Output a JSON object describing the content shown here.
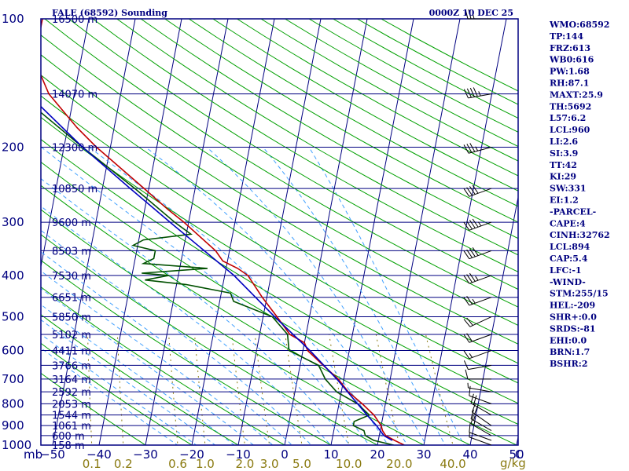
{
  "header": {
    "station": "FALE (68592) Sounding",
    "time": "0000Z 10 DEC 25"
  },
  "units": {
    "pressure": "mb",
    "mixing_ratio": "g/kg",
    "temperature": "C"
  },
  "indices": [
    "WMO:68592",
    "TP:144",
    "FRZ:613",
    "WB0:616",
    "PW:1.68",
    "RH:87.1",
    "MAXT:25.9",
    "TH:5692",
    "L57:6.2",
    "LCL:960",
    "LI:2.6",
    "SI:3.9",
    "TT:42",
    "KI:29",
    "SW:331",
    "EI:1.2",
    "-PARCEL-",
    "CAPE:4",
    "CINH:32762",
    "LCL:894",
    "CAP:5.4",
    "LFC:-1",
    "-WIND-",
    "STM:255/15",
    "HEL:-209",
    "SHR+:0.0",
    "SRDS:-81",
    "EHI:0.0",
    "BRN:1.7",
    "BSHR:2"
  ],
  "colors": {
    "frame": "#000080",
    "temperature": "#c00000",
    "dewpoint": "#005000",
    "parcel": "#0000c0",
    "dry_adiabat": "#00a000",
    "moist_adiabat": "#40a0ff",
    "mixing_ratio": "#8a7a10",
    "wind": "#000000"
  },
  "chart_data": {
    "type": "line",
    "title": "FALE (68592) Sounding",
    "xlabel": "C",
    "ylabel": "mb",
    "xlim": [
      -50,
      50
    ],
    "ylim": [
      1000,
      100
    ],
    "y_scale": "log",
    "pressure_ticks": [
      1000,
      900,
      800,
      700,
      600,
      500,
      400,
      300,
      200,
      100
    ],
    "temperature_ticks": [
      -50,
      -40,
      -30,
      -20,
      -10,
      0,
      10,
      20,
      30,
      40,
      50
    ],
    "mixing_ratio_ticks": [
      "0.1",
      "0.2",
      "0.6",
      "1.0",
      "2.0",
      "3.0",
      "5.0",
      "10.0",
      "20.0",
      "40.0"
    ],
    "mixing_ratio_values": [
      0.1,
      0.2,
      0.6,
      1.0,
      2.0,
      3.0,
      5.0,
      10.0,
      20.0,
      40.0
    ],
    "height_levels": [
      {
        "p": 1000,
        "label": "158 m"
      },
      {
        "p": 950,
        "label": "600 m"
      },
      {
        "p": 900,
        "label": "1061 m"
      },
      {
        "p": 850,
        "label": "1544 m"
      },
      {
        "p": 800,
        "label": "2053 m"
      },
      {
        "p": 750,
        "label": "2592 m"
      },
      {
        "p": 700,
        "label": "3164 m"
      },
      {
        "p": 650,
        "label": "3766 m"
      },
      {
        "p": 600,
        "label": "4411 m"
      },
      {
        "p": 550,
        "label": "5102 m"
      },
      {
        "p": 500,
        "label": "5850 m"
      },
      {
        "p": 450,
        "label": "6651 m"
      },
      {
        "p": 400,
        "label": "7530 m"
      },
      {
        "p": 350,
        "label": "8503 m"
      },
      {
        "p": 300,
        "label": "9600 m"
      },
      {
        "p": 250,
        "label": "10850 m"
      },
      {
        "p": 200,
        "label": "12300 m"
      },
      {
        "p": 150,
        "label": "14070 m"
      },
      {
        "p": 100,
        "label": "16500 m"
      }
    ],
    "series": [
      {
        "name": "Temperature",
        "points": [
          [
            1000,
            25.8
          ],
          [
            975,
            23.5
          ],
          [
            950,
            21.4
          ],
          [
            925,
            20.5
          ],
          [
            900,
            20.0
          ],
          [
            850,
            18.0
          ],
          [
            800,
            15.0
          ],
          [
            750,
            11.5
          ],
          [
            700,
            8.8
          ],
          [
            650,
            5.0
          ],
          [
            600,
            1.0
          ],
          [
            575,
            0.0
          ],
          [
            550,
            -3.5
          ],
          [
            500,
            -7.0
          ],
          [
            450,
            -11.0
          ],
          [
            400,
            -15.0
          ],
          [
            385,
            -17.5
          ],
          [
            370,
            -21.0
          ],
          [
            350,
            -23.0
          ],
          [
            300,
            -31.0
          ],
          [
            280,
            -35.0
          ],
          [
            250,
            -41.0
          ],
          [
            200,
            -53.0
          ],
          [
            180,
            -58.0
          ],
          [
            150,
            -65.5
          ],
          [
            125,
            -70.0
          ],
          [
            115,
            -71.5
          ],
          [
            105,
            -70.0
          ],
          [
            100,
            -70.0
          ]
        ]
      },
      {
        "name": "Dewpoint",
        "points": [
          [
            1000,
            23.5
          ],
          [
            975,
            19.0
          ],
          [
            950,
            17.0
          ],
          [
            925,
            16.5
          ],
          [
            900,
            14.0
          ],
          [
            880,
            14.0
          ],
          [
            850,
            17.0
          ],
          [
            800,
            14.0
          ],
          [
            750,
            9.0
          ],
          [
            700,
            6.0
          ],
          [
            650,
            4.0
          ],
          [
            600,
            -3.0
          ],
          [
            550,
            -4.0
          ],
          [
            500,
            -8.0
          ],
          [
            460,
            -17.0
          ],
          [
            440,
            -18.0
          ],
          [
            420,
            -28.0
          ],
          [
            410,
            -37.0
          ],
          [
            400,
            -32.0
          ],
          [
            395,
            -38.0
          ],
          [
            385,
            -24.0
          ],
          [
            375,
            -38.0
          ],
          [
            365,
            -36.0
          ],
          [
            350,
            -36.0
          ],
          [
            340,
            -41.0
          ],
          [
            330,
            -39.0
          ],
          [
            320,
            -29.0
          ],
          [
            300,
            -33.0
          ],
          [
            250,
            -43.0
          ],
          [
            200,
            -56.0
          ],
          [
            150,
            -72.0
          ],
          [
            125,
            -76.0
          ],
          [
            112,
            -77.0
          ],
          [
            105,
            -78.0
          ],
          [
            100,
            -77.5
          ]
        ]
      },
      {
        "name": "Parcel",
        "points": [
          [
            975,
            23.0
          ],
          [
            950,
            21.0
          ],
          [
            900,
            19.0
          ],
          [
            850,
            16.5
          ],
          [
            800,
            14.0
          ],
          [
            700,
            8.5
          ],
          [
            600,
            1.5
          ],
          [
            500,
            -7.5
          ],
          [
            400,
            -18.0
          ],
          [
            300,
            -34.0
          ],
          [
            250,
            -44.0
          ],
          [
            200,
            -56.0
          ],
          [
            150,
            -70.0
          ],
          [
            100,
            -87.0
          ]
        ]
      }
    ],
    "winds": [
      {
        "p": 1000,
        "dir": 290,
        "spd": 5
      },
      {
        "p": 975,
        "dir": 290,
        "spd": 10
      },
      {
        "p": 950,
        "dir": 300,
        "spd": 15
      },
      {
        "p": 925,
        "dir": 300,
        "spd": 15
      },
      {
        "p": 900,
        "dir": 305,
        "spd": 20
      },
      {
        "p": 850,
        "dir": 300,
        "spd": 20
      },
      {
        "p": 800,
        "dir": 290,
        "spd": 10
      },
      {
        "p": 750,
        "dir": 280,
        "spd": 5
      },
      {
        "p": 700,
        "dir": 270,
        "spd": 10
      },
      {
        "p": 650,
        "dir": 260,
        "spd": 10
      },
      {
        "p": 600,
        "dir": 250,
        "spd": 15
      },
      {
        "p": 550,
        "dir": 250,
        "spd": 20
      },
      {
        "p": 500,
        "dir": 245,
        "spd": 20
      },
      {
        "p": 450,
        "dir": 250,
        "spd": 25
      },
      {
        "p": 400,
        "dir": 250,
        "spd": 35
      },
      {
        "p": 350,
        "dir": 250,
        "spd": 40
      },
      {
        "p": 300,
        "dir": 250,
        "spd": 45
      },
      {
        "p": 250,
        "dir": 250,
        "spd": 40
      },
      {
        "p": 200,
        "dir": 255,
        "spd": 35
      },
      {
        "p": 150,
        "dir": 260,
        "spd": 45
      },
      {
        "p": 100,
        "dir": 270,
        "spd": 25
      }
    ]
  }
}
